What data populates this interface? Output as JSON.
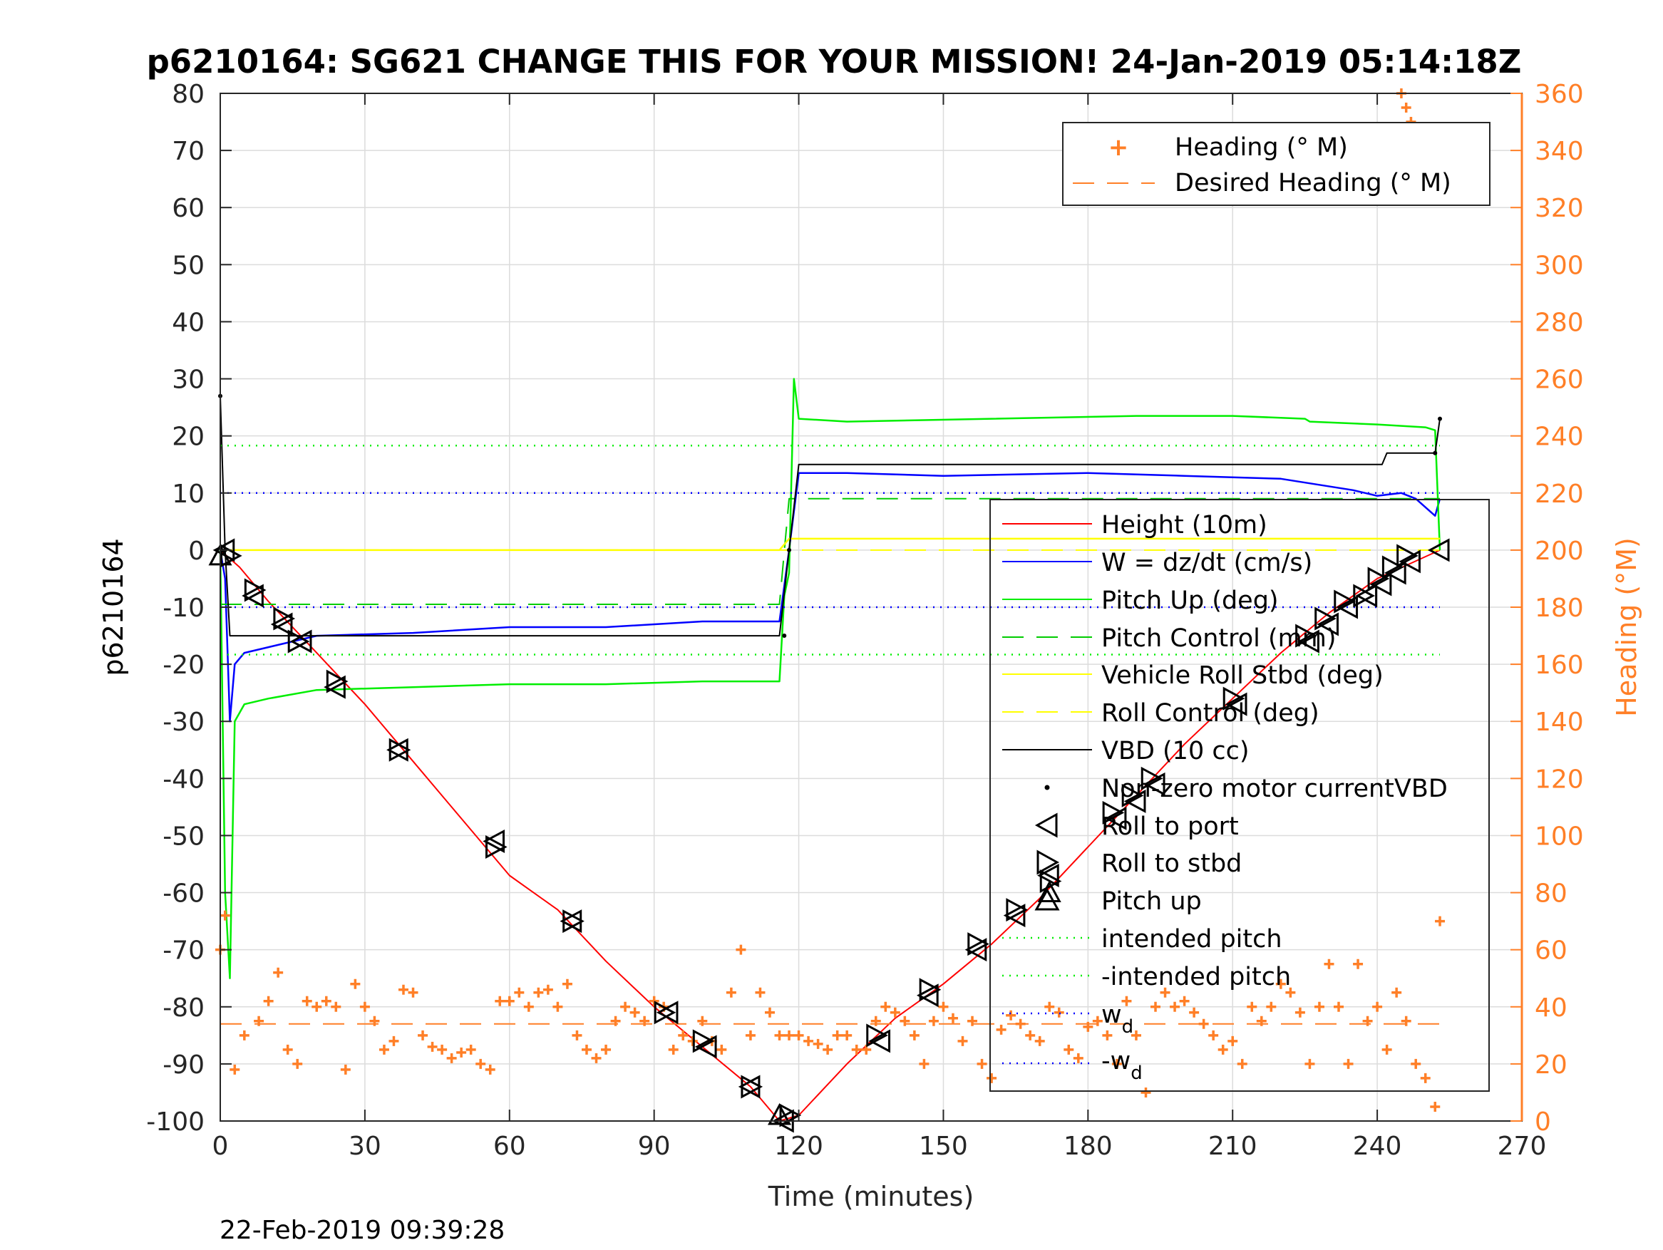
{
  "chart_data": {
    "type": "line",
    "title": "p6210164: SG621 CHANGE THIS FOR YOUR MISSION! 24-Jan-2019 05:14:18Z",
    "xlabel": "Time (minutes)",
    "ylabel_left": "p6210164",
    "ylabel_right": "Heading (°M)",
    "footer_date": "22-Feb-2019 09:39:28",
    "xlim": [
      0,
      270
    ],
    "ylim_left": [
      -100,
      80
    ],
    "ylim_right": [
      0,
      360
    ],
    "x_ticks": [
      "0",
      "30",
      "60",
      "90",
      "120",
      "150",
      "180",
      "210",
      "240",
      "270"
    ],
    "y_left_ticks": [
      "80",
      "70",
      "60",
      "50",
      "40",
      "30",
      "20",
      "10",
      "0",
      "-10",
      "-20",
      "-30",
      "-40",
      "-50",
      "-60",
      "-70",
      "-80",
      "-90",
      "-100"
    ],
    "y_right_ticks": [
      "360",
      "340",
      "320",
      "300",
      "280",
      "260",
      "240",
      "220",
      "200",
      "180",
      "160",
      "140",
      "120",
      "100",
      "80",
      "60",
      "40",
      "20",
      "0"
    ],
    "grid": true,
    "colors": {
      "height": "#ff0000",
      "w": "#0000ff",
      "pitch": "#00ee00",
      "roll": "#ffff00",
      "vbd": "#000000",
      "heading": "#ff7f27",
      "right_axis": "#ff7f27"
    },
    "legend_heading": {
      "placement": "top-right",
      "entries": [
        "Heading (° M)",
        "Desired Heading (° M)"
      ]
    },
    "legend_main": {
      "placement": "right",
      "entries": [
        "Height (10m)",
        "W = dz/dt (cm/s)",
        "Pitch Up (deg)",
        "Pitch Control (mm)",
        "Vehicle Roll Stbd (deg)",
        "Roll Control (deg)",
        "VBD (10 cc)",
        "Non-zero motor currentVBD",
        "Roll to port",
        "Roll to stbd",
        "Pitch up",
        "intended pitch",
        "-intended pitch",
        "w",
        "-w"
      ],
      "subscript_d": "d"
    },
    "series": [
      {
        "name": "Height (10m)",
        "axis": "left",
        "x": [
          0,
          4,
          10,
          20,
          30,
          40,
          50,
          60,
          70,
          80,
          90,
          100,
          110,
          116,
          120,
          130,
          140,
          150,
          160,
          170,
          180,
          190,
          200,
          210,
          220,
          230,
          240,
          253
        ],
        "y": [
          0,
          -3,
          -9,
          -18,
          -27,
          -37,
          -47,
          -57,
          -63,
          -72,
          -80,
          -87,
          -94,
          -100,
          -99,
          -90,
          -82,
          -76,
          -69,
          -61,
          -52,
          -43,
          -34,
          -26,
          -18,
          -11,
          -5,
          0
        ]
      },
      {
        "name": "W = dz/dt (cm/s)",
        "axis": "left",
        "x": [
          0,
          1,
          2,
          3,
          5,
          10,
          20,
          40,
          60,
          80,
          100,
          116,
          118,
          120,
          130,
          150,
          180,
          200,
          220,
          235,
          240,
          245,
          248,
          252,
          253
        ],
        "y": [
          0,
          -5,
          -30,
          -20,
          -18,
          -17,
          -15,
          -14.5,
          -13.5,
          -13.5,
          -12.5,
          -12.5,
          0,
          13.5,
          13.5,
          13.0,
          13.5,
          13.0,
          12.5,
          10.5,
          9.5,
          10,
          9,
          6,
          9
        ]
      },
      {
        "name": "Pitch Up (deg)",
        "axis": "left",
        "x": [
          0,
          1,
          2,
          3,
          5,
          10,
          20,
          40,
          60,
          80,
          100,
          116,
          117,
          118,
          119,
          120,
          130,
          160,
          190,
          210,
          225,
          226,
          240,
          250,
          252,
          253
        ],
        "y": [
          0,
          -60,
          -75,
          -30,
          -27,
          -26,
          -24.5,
          -24,
          -23.5,
          -23.5,
          -23,
          -23,
          -8,
          -4,
          30,
          23,
          22.5,
          23,
          23.5,
          23.5,
          23,
          22.5,
          22,
          21.5,
          21,
          0
        ]
      },
      {
        "name": "Pitch Control (mm)",
        "axis": "left",
        "x": [
          0,
          116,
          118,
          253
        ],
        "y": [
          -9.5,
          -9.5,
          9,
          9
        ]
      },
      {
        "name": "Vehicle Roll Stbd (deg)",
        "axis": "left",
        "x": [
          0,
          116,
          118,
          253
        ],
        "y": [
          0,
          0,
          2,
          2
        ]
      },
      {
        "name": "Roll Control (deg)",
        "axis": "left",
        "x": [
          0,
          253
        ],
        "y": [
          0,
          0
        ]
      },
      {
        "name": "VBD (10 cc)",
        "axis": "left",
        "x": [
          0,
          1,
          2,
          116,
          118,
          120,
          190,
          241,
          242,
          252,
          253
        ],
        "y": [
          27,
          0,
          -15,
          -15,
          0,
          15,
          15,
          15,
          17,
          17,
          23
        ]
      },
      {
        "name": "intended pitch",
        "axis": "left",
        "x": [
          0,
          253
        ],
        "y": [
          18.3,
          18.3
        ]
      },
      {
        "name": "-intended pitch",
        "axis": "left",
        "x": [
          0,
          253
        ],
        "y": [
          -18.3,
          -18.3
        ]
      },
      {
        "name": "w",
        "axis": "left",
        "x": [
          0,
          253
        ],
        "y": [
          10,
          10
        ]
      },
      {
        "name": "-w",
        "axis": "left",
        "x": [
          0,
          253
        ],
        "y": [
          -10,
          -10
        ]
      },
      {
        "name": "Desired Heading (° M)",
        "axis": "right",
        "x": [
          0,
          253
        ],
        "y": [
          34,
          34
        ]
      },
      {
        "name": "Heading (° M)",
        "axis": "right",
        "x": [
          0,
          1,
          3,
          5,
          8,
          10,
          12,
          14,
          16,
          18,
          20,
          22,
          24,
          26,
          28,
          30,
          32,
          34,
          36,
          38,
          40,
          42,
          44,
          46,
          48,
          50,
          52,
          54,
          56,
          58,
          60,
          62,
          64,
          66,
          68,
          70,
          72,
          74,
          76,
          78,
          80,
          82,
          84,
          86,
          88,
          90,
          92,
          94,
          96,
          98,
          100,
          102,
          104,
          106,
          108,
          110,
          112,
          114,
          116,
          118,
          120,
          122,
          124,
          126,
          128,
          130,
          132,
          134,
          136,
          138,
          140,
          142,
          144,
          146,
          148,
          150,
          152,
          154,
          156,
          158,
          160,
          162,
          164,
          166,
          168,
          170,
          172,
          174,
          176,
          178,
          180,
          182,
          184,
          186,
          188,
          190,
          192,
          194,
          196,
          198,
          200,
          202,
          204,
          206,
          208,
          210,
          212,
          214,
          216,
          218,
          220,
          222,
          224,
          226,
          228,
          230,
          232,
          234,
          236,
          238,
          240,
          242,
          244,
          246,
          248,
          250,
          252,
          253
        ],
        "y": [
          60,
          72,
          18,
          30,
          35,
          42,
          52,
          25,
          20,
          42,
          40,
          42,
          40,
          18,
          48,
          40,
          35,
          25,
          28,
          46,
          45,
          30,
          26,
          25,
          22,
          24,
          25,
          20,
          18,
          42,
          42,
          45,
          40,
          45,
          46,
          40,
          48,
          30,
          25,
          22,
          25,
          35,
          40,
          38,
          35,
          42,
          40,
          25,
          30,
          28,
          35,
          28,
          25,
          45,
          60,
          30,
          45,
          38,
          30,
          30,
          30,
          28,
          27,
          25,
          30,
          30,
          25,
          25,
          35,
          40,
          38,
          35,
          30,
          20,
          35,
          40,
          36,
          28,
          35,
          20,
          15,
          32,
          37,
          34,
          30,
          28,
          40,
          38,
          25,
          22,
          33,
          35,
          30,
          20,
          42,
          30,
          10,
          40,
          45,
          40,
          42,
          38,
          34,
          30,
          25,
          28,
          20,
          40,
          35,
          40,
          48,
          45,
          38,
          20,
          40,
          55,
          40,
          20,
          55,
          35,
          40,
          25,
          45,
          35,
          20,
          15,
          5,
          70
        ]
      },
      {
        "name": "Heading (° M) tail",
        "axis": "right",
        "x": [
          245,
          246,
          247,
          248,
          249,
          250,
          251
        ],
        "y": [
          360,
          355,
          350,
          345,
          340,
          335,
          340
        ]
      }
    ],
    "markers": {
      "roll_to_port": {
        "x": [
          1,
          7,
          13,
          17,
          24,
          37,
          57,
          73,
          93,
          101,
          110,
          117,
          137,
          147,
          157,
          165,
          172,
          186,
          190,
          194,
          211,
          226,
          230,
          234,
          238,
          241,
          244,
          247,
          253
        ],
        "y": [
          0,
          -8,
          -13,
          -16,
          -24,
          -35,
          -51,
          -65,
          -81,
          -87,
          -94,
          -100,
          -86,
          -78,
          -70,
          -64,
          -57,
          -47,
          -44,
          -41,
          -27,
          -16,
          -13,
          -10,
          -8,
          -6,
          -4,
          -2,
          0
        ]
      },
      "roll_to_stbd": {
        "x": [
          2,
          7,
          13,
          16,
          24,
          37,
          57,
          73,
          92,
          100,
          110,
          118,
          136,
          147,
          157,
          165,
          172,
          185,
          189,
          193,
          210,
          225,
          229,
          233,
          237,
          240,
          243,
          246
        ],
        "y": [
          -1,
          -7,
          -12,
          -16,
          -23,
          -35,
          -52,
          -65,
          -81,
          -86,
          -94,
          -99,
          -85,
          -77,
          -69,
          -63,
          -58,
          -46,
          -43,
          -40,
          -26,
          -15,
          -12,
          -9,
          -8,
          -5,
          -3,
          -1
        ]
      },
      "pitch_up": {
        "x": [
          0,
          116,
          172
        ],
        "y": [
          -1,
          -99,
          -60
        ]
      },
      "non_zero_motor_currentVBD": {
        "x": [
          0,
          1,
          117,
          118,
          252,
          253
        ],
        "y": [
          27,
          0,
          -15,
          0,
          17,
          23
        ]
      }
    }
  }
}
